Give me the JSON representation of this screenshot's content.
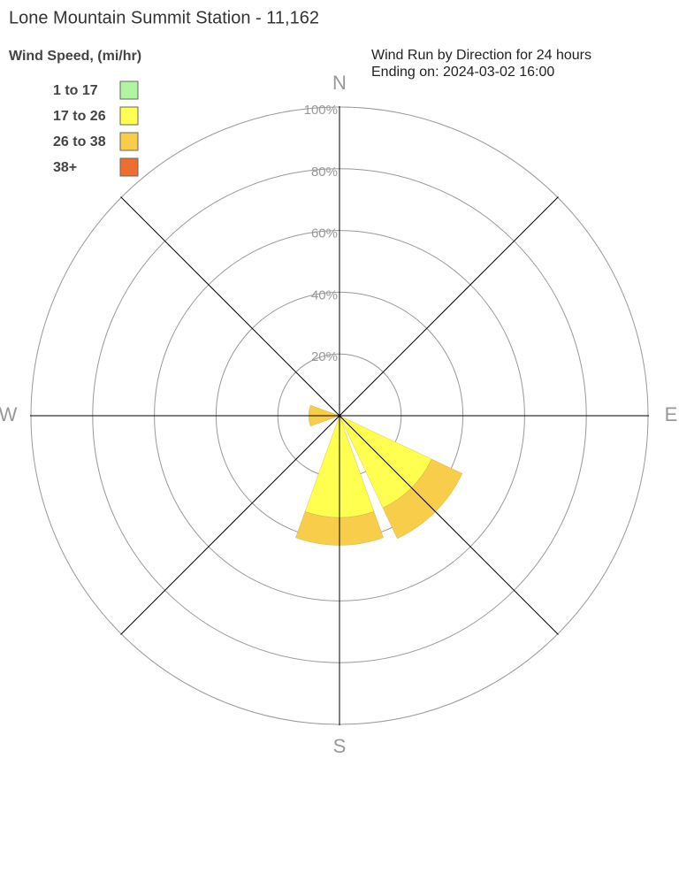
{
  "chart_data": {
    "type": "windrose",
    "title": "Lone Mountain Summit Station - 11,162",
    "legend_title": "Wind Speed, (mi/hr)",
    "subtitle": [
      "Wind Run by Direction for 24 hours",
      "Ending on: 2024-03-02 16:00"
    ],
    "categories": [
      "N",
      null,
      "E",
      null,
      "S",
      null,
      "W",
      null
    ],
    "series": [
      {
        "name": "1 to 17",
        "color": "#b0f5a0",
        "values": [
          0,
          0,
          0,
          0,
          0,
          0,
          0,
          0
        ]
      },
      {
        "name": "17 to 26",
        "color": "#ffff50",
        "values": [
          0,
          0,
          0,
          33,
          33,
          0,
          0,
          0
        ]
      },
      {
        "name": "26 to 38",
        "color": "#f7cd4a",
        "values": [
          0,
          0,
          0,
          11,
          9,
          0,
          10,
          0
        ]
      },
      {
        "name": "38+",
        "color": "#ef6d2e",
        "values": [
          0,
          0,
          0,
          0,
          0,
          0,
          0,
          0
        ]
      }
    ],
    "rlim": [
      0,
      100
    ],
    "rticks": [
      {
        "value": 20,
        "label": "20%"
      },
      {
        "value": 40,
        "label": "40%"
      },
      {
        "value": 60,
        "label": "60%"
      },
      {
        "value": 80,
        "label": "80%"
      },
      {
        "value": 100,
        "label": "100%"
      }
    ]
  }
}
